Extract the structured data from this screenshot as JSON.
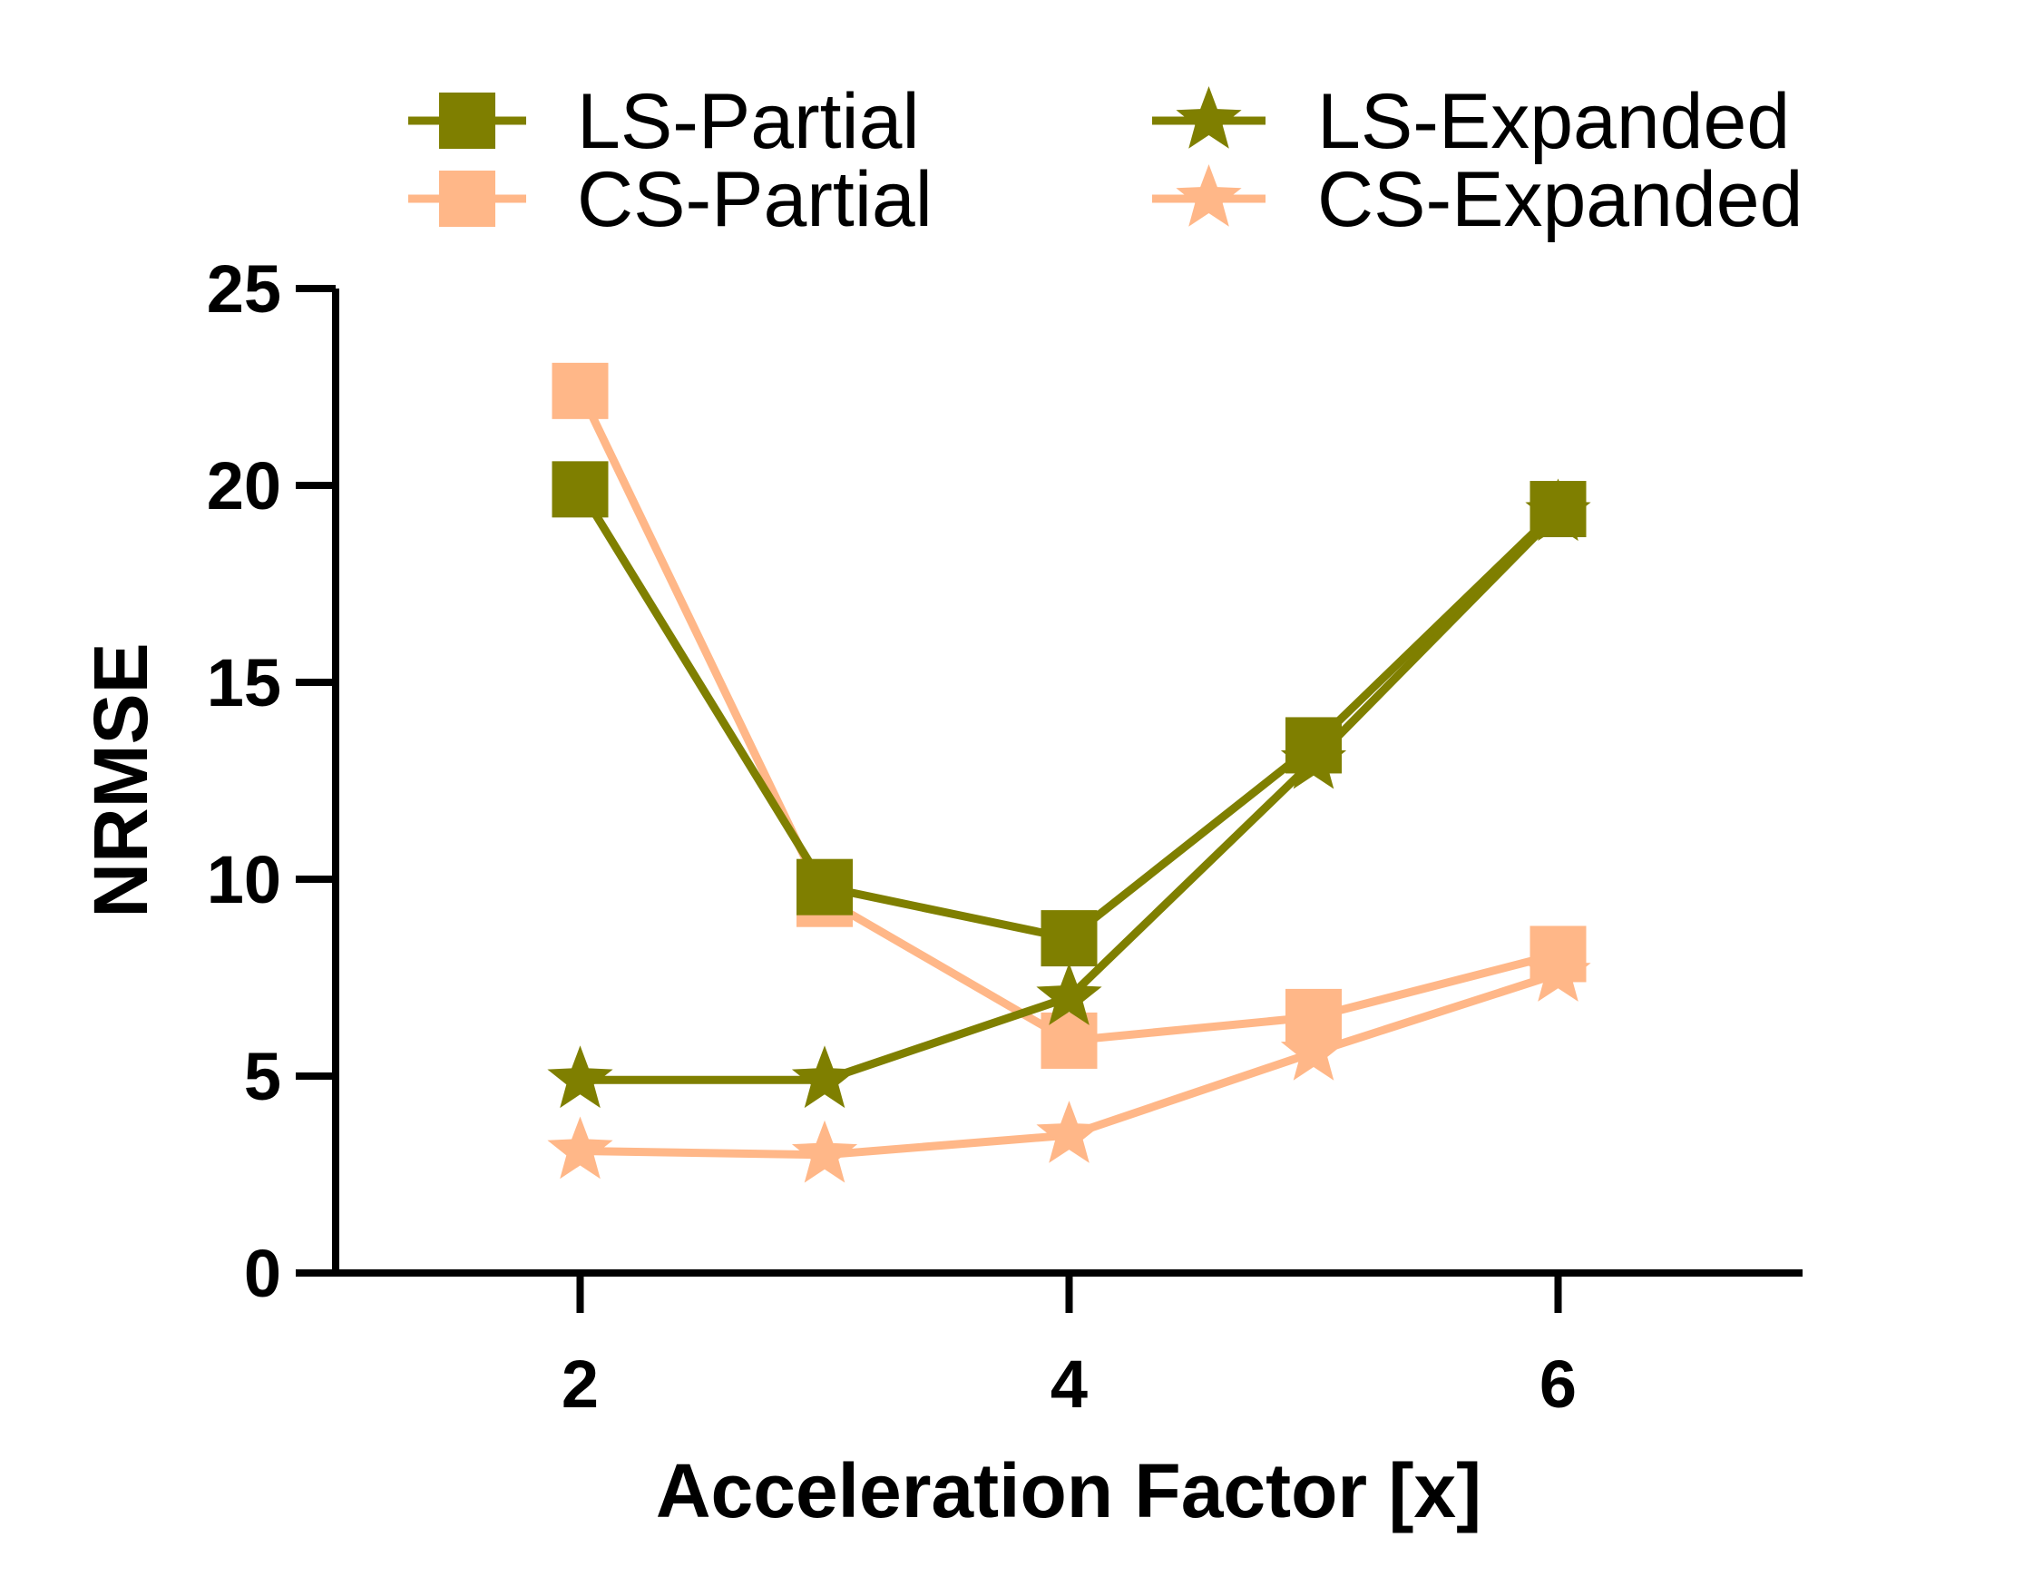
{
  "chart_data": {
    "type": "line",
    "title": "",
    "xlabel": "Acceleration Factor [x]",
    "ylabel": "NRMSE",
    "x": [
      2,
      3,
      4,
      5,
      6
    ],
    "xlim": [
      1,
      7
    ],
    "ylim": [
      0,
      25
    ],
    "xticks": [
      2,
      4,
      6
    ],
    "yticks": [
      0,
      5,
      10,
      15,
      20,
      25
    ],
    "grid": false,
    "legend_position": "top",
    "series": [
      {
        "name": "LS-Partial",
        "marker": "square",
        "color": "#7f7f00",
        "values": [
          19.9,
          9.8,
          8.5,
          13.4,
          19.4
        ]
      },
      {
        "name": "CS-Partial",
        "marker": "square",
        "color": "#ffb788",
        "values": [
          22.4,
          9.5,
          5.9,
          6.5,
          8.1
        ]
      },
      {
        "name": "LS-Expanded",
        "marker": "star",
        "color": "#7f7f00",
        "values": [
          4.9,
          4.9,
          7.0,
          13.0,
          19.3
        ]
      },
      {
        "name": "CS-Expanded",
        "marker": "star",
        "color": "#ffb788",
        "values": [
          3.1,
          3.0,
          3.5,
          5.6,
          7.6
        ]
      }
    ]
  }
}
